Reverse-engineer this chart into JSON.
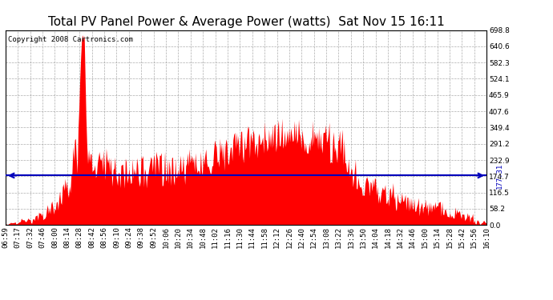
{
  "title": "Total PV Panel Power & Average Power (watts)  Sat Nov 15 16:11",
  "copyright": "Copyright 2008 Cartronics.com",
  "average_power": 177.31,
  "y_max": 698.8,
  "y_min": 0.0,
  "y_ticks": [
    0.0,
    58.2,
    116.5,
    174.7,
    232.9,
    291.2,
    349.4,
    407.6,
    465.9,
    524.1,
    582.3,
    640.6,
    698.8
  ],
  "fill_color": "#FF0000",
  "avg_line_color": "#0000BB",
  "background_color": "#FFFFFF",
  "grid_color": "#999999",
  "x_labels": [
    "06:59",
    "07:17",
    "07:32",
    "07:46",
    "08:00",
    "08:14",
    "08:28",
    "08:42",
    "08:56",
    "09:10",
    "09:24",
    "09:38",
    "09:52",
    "10:06",
    "10:20",
    "10:34",
    "10:48",
    "11:02",
    "11:16",
    "11:30",
    "11:44",
    "11:58",
    "12:12",
    "12:26",
    "12:40",
    "12:54",
    "13:08",
    "13:22",
    "13:36",
    "13:50",
    "14:04",
    "14:18",
    "14:32",
    "14:46",
    "15:00",
    "15:14",
    "15:28",
    "15:42",
    "15:56",
    "16:10"
  ],
  "title_fontsize": 11,
  "copyright_fontsize": 6.5,
  "tick_fontsize": 6.5,
  "avg_label_fontsize": 6.5,
  "figwidth": 6.9,
  "figheight": 3.75,
  "dpi": 100
}
